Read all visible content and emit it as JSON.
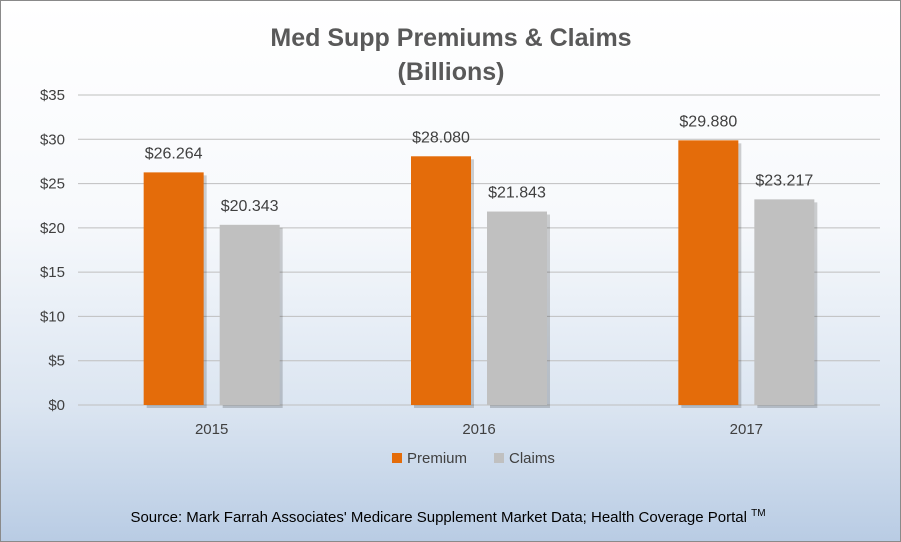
{
  "chart_data": {
    "type": "bar",
    "title": "Med Supp Premiums & Claims",
    "subtitle": "(Billions)",
    "categories": [
      "2015",
      "2016",
      "2017"
    ],
    "series": [
      {
        "name": "Premium",
        "values": [
          26.264,
          28.08,
          29.88
        ],
        "labels": [
          "$26.264",
          "$28.080",
          "$29.880"
        ]
      },
      {
        "name": "Claims",
        "values": [
          20.343,
          21.843,
          23.217
        ],
        "labels": [
          "$20.343",
          "$21.843",
          "$23.217"
        ]
      }
    ],
    "ylim": [
      0,
      35
    ],
    "yticks": [
      0,
      5,
      10,
      15,
      20,
      25,
      30,
      35
    ],
    "ytick_labels": [
      "$0",
      "$5",
      "$10",
      "$15",
      "$20",
      "$25",
      "$30",
      "$35"
    ],
    "grid": true,
    "legend_position": "bottom",
    "colors": {
      "premium": "#E46C0A",
      "claims": "#C0C0C0",
      "gridline": "#BFBFBF"
    },
    "source": {
      "text": "Source:  Mark Farrah Associates' Medicare Supplement Market Data; Health Coverage Portal",
      "trademark": "TM"
    }
  }
}
